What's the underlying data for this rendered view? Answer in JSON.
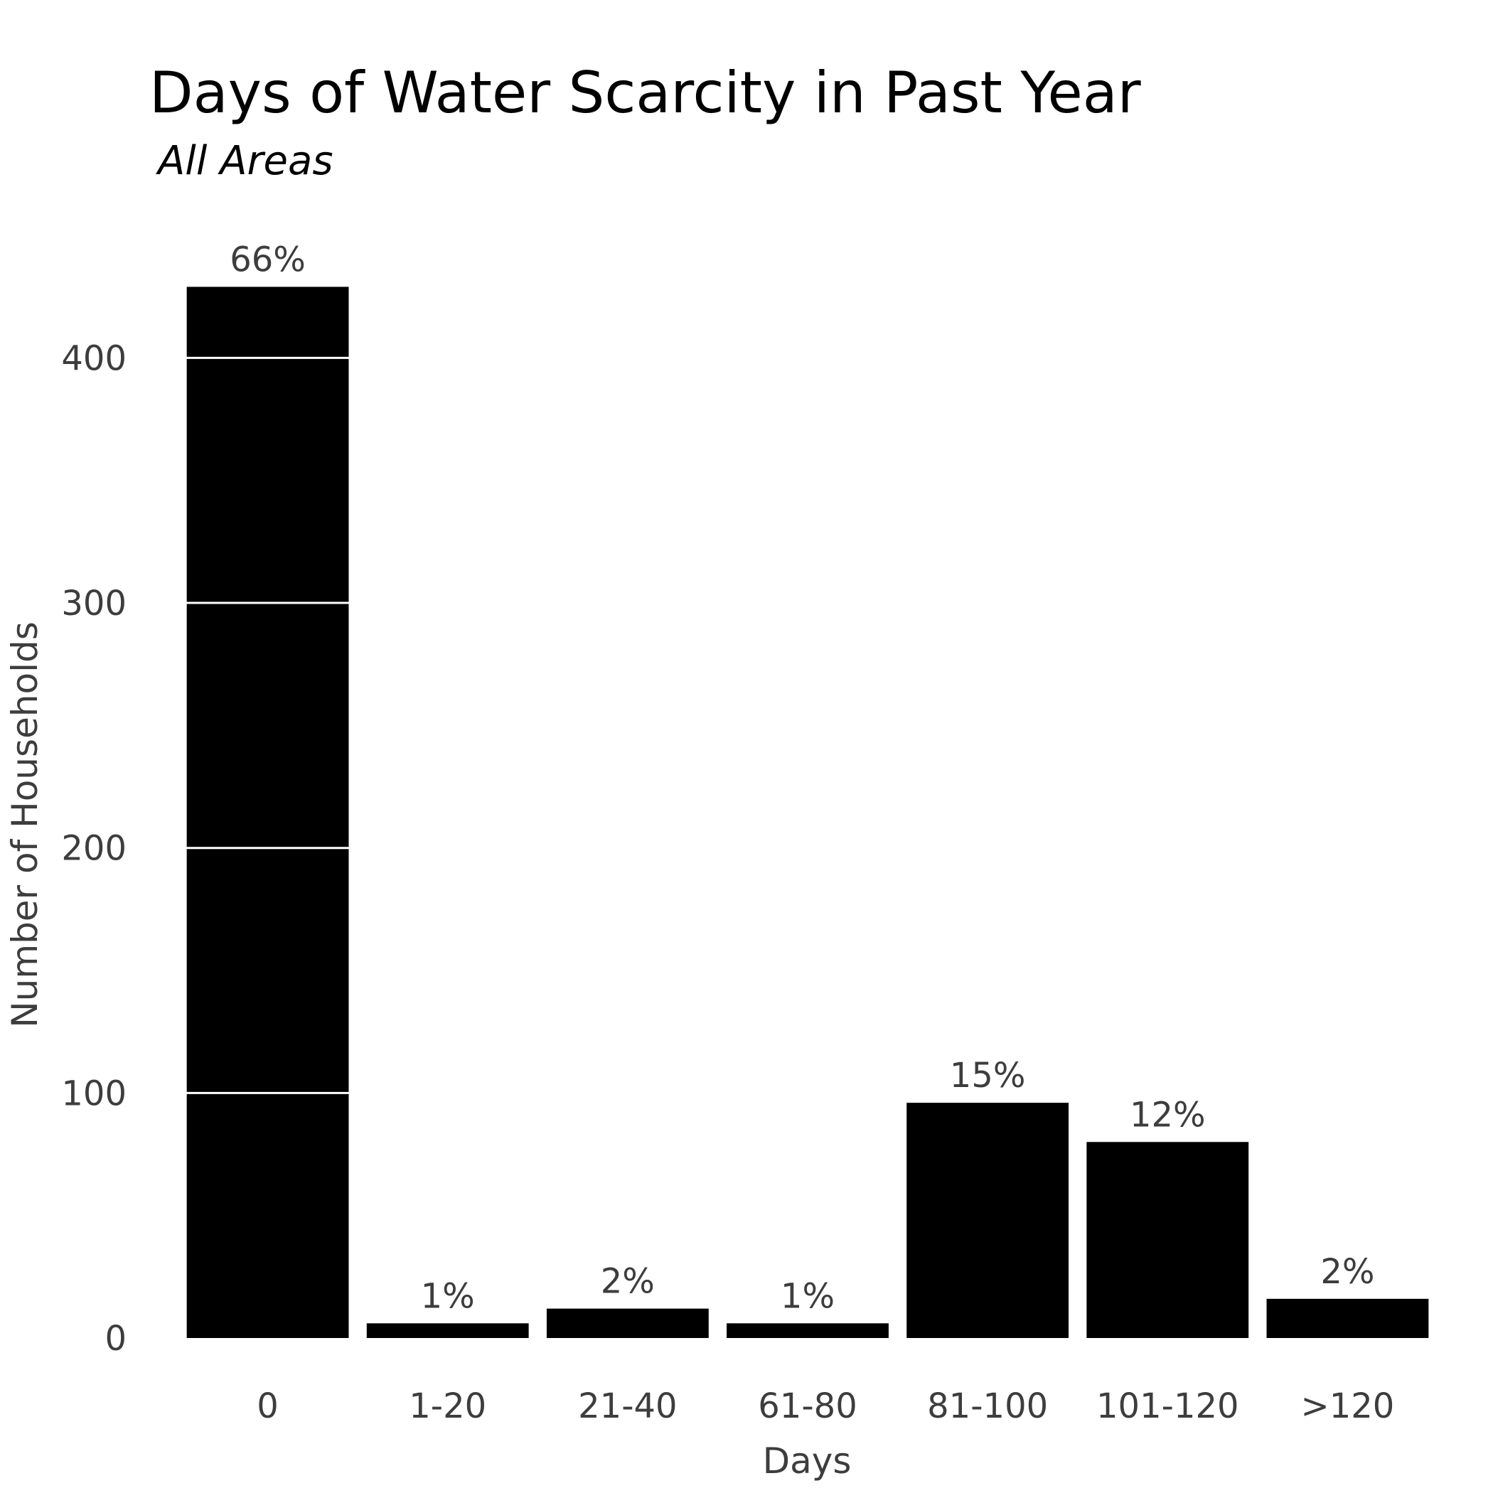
{
  "chart_data": {
    "type": "bar",
    "title": "Days of Water Scarcity in Past Year",
    "subtitle": "All Areas",
    "xlabel": "Days",
    "ylabel": "Number of Households",
    "categories": [
      "0",
      "1-20",
      "21-40",
      "61-80",
      "81-100",
      "101-120",
      ">120"
    ],
    "values": [
      429,
      6,
      12,
      6,
      96,
      80,
      16
    ],
    "data_labels": [
      "66%",
      "1%",
      "2%",
      "1%",
      "15%",
      "12%",
      "2%"
    ],
    "yticks": [
      0,
      100,
      200,
      300,
      400
    ],
    "ytick_labels": [
      "0",
      "100",
      "200",
      "300",
      "400"
    ],
    "ylim": [
      0,
      430
    ],
    "grid": true,
    "bar_color": "#000000",
    "grid_color": "#ffffff",
    "text_color": "#3d3d3d"
  }
}
